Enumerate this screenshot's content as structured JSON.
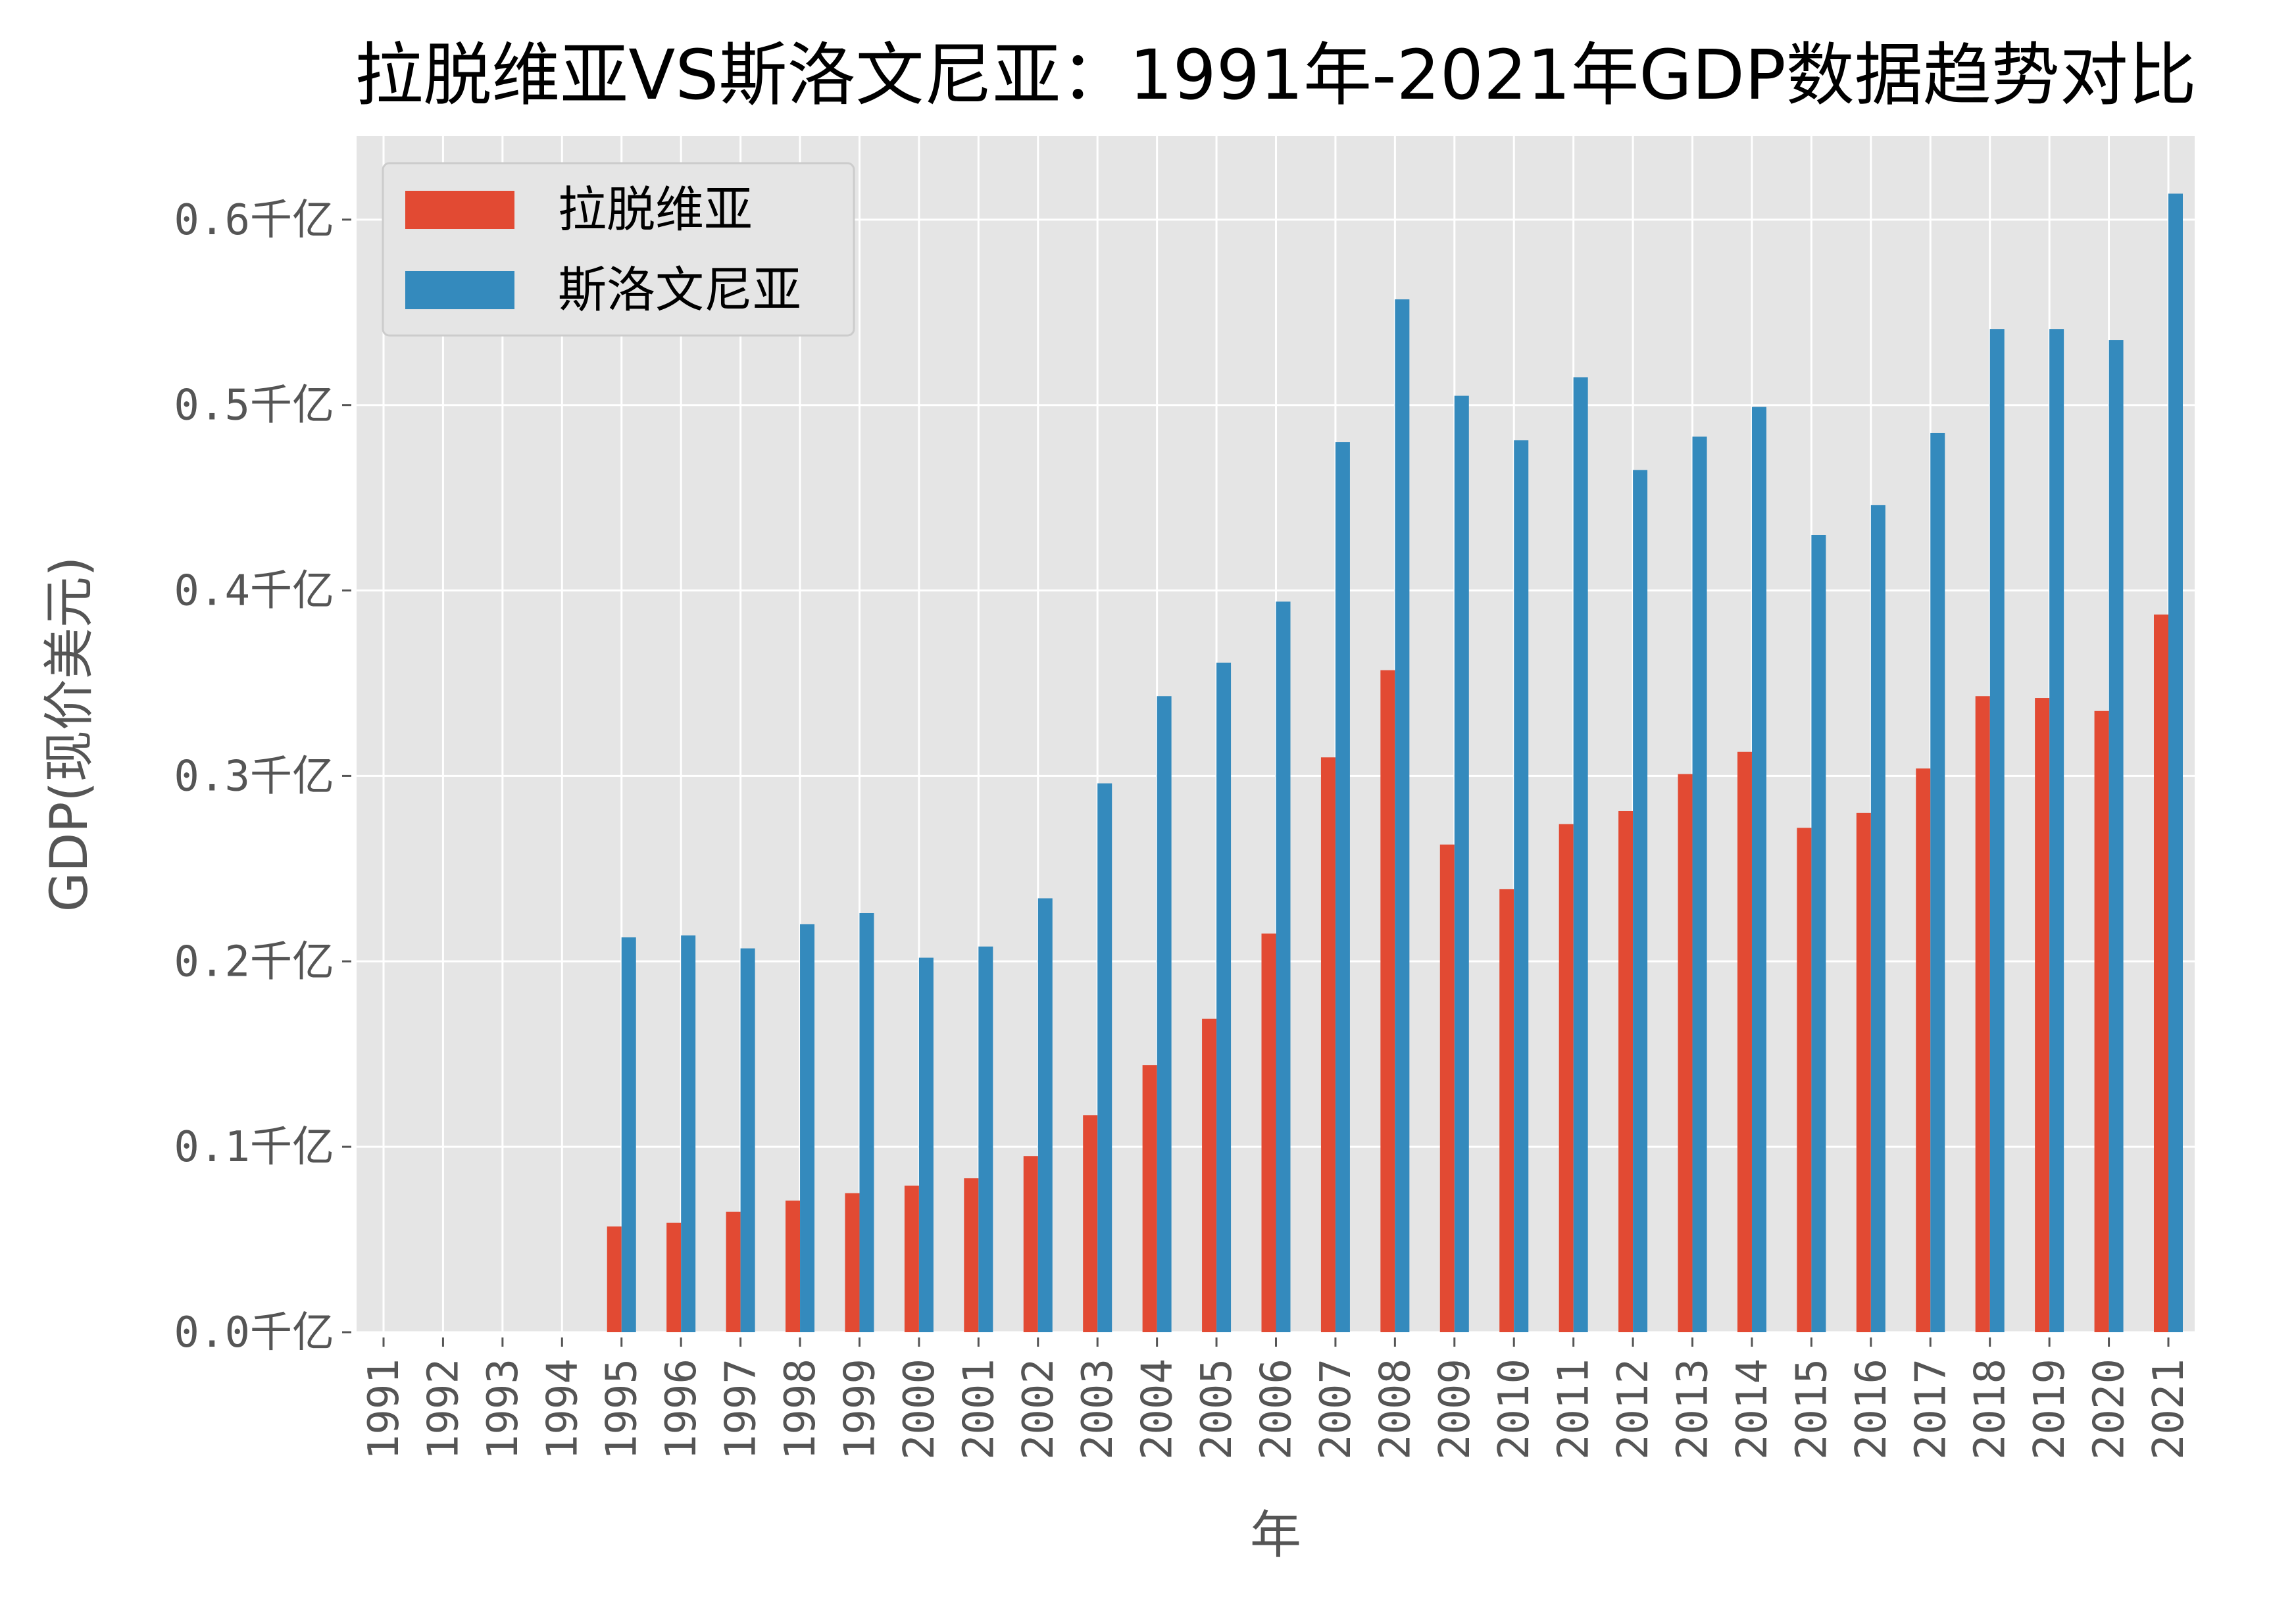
{
  "chart_data": {
    "type": "bar",
    "title": "拉脱维亚VS斯洛文尼亚：1991年-2021年GDP数据趋势对比",
    "xlabel": "年",
    "ylabel": "GDP(现价美元)",
    "categories": [
      "1991",
      "1992",
      "1993",
      "1994",
      "1995",
      "1996",
      "1997",
      "1998",
      "1999",
      "2000",
      "2001",
      "2002",
      "2003",
      "2004",
      "2005",
      "2006",
      "2007",
      "2008",
      "2009",
      "2010",
      "2011",
      "2012",
      "2013",
      "2014",
      "2015",
      "2016",
      "2017",
      "2018",
      "2019",
      "2020",
      "2021"
    ],
    "y_ticks": [
      {
        "value": 0.0,
        "label": "0.0千亿"
      },
      {
        "value": 0.1,
        "label": "0.1千亿"
      },
      {
        "value": 0.2,
        "label": "0.2千亿"
      },
      {
        "value": 0.3,
        "label": "0.3千亿"
      },
      {
        "value": 0.4,
        "label": "0.4千亿"
      },
      {
        "value": 0.5,
        "label": "0.5千亿"
      },
      {
        "value": 0.6,
        "label": "0.6千亿"
      }
    ],
    "ylim": [
      0,
      0.645
    ],
    "grid": true,
    "legend_position": "top-left",
    "series": [
      {
        "name": "拉脱维亚",
        "color": "#e24a33",
        "values": [
          null,
          null,
          null,
          null,
          0.057,
          0.059,
          0.065,
          0.071,
          0.075,
          0.079,
          0.083,
          0.095,
          0.117,
          0.144,
          0.169,
          0.215,
          0.31,
          0.357,
          0.263,
          0.239,
          0.274,
          0.281,
          0.301,
          0.313,
          0.272,
          0.28,
          0.304,
          0.343,
          0.342,
          0.335,
          0.387
        ]
      },
      {
        "name": "斯洛文尼亚",
        "color": "#348abd",
        "values": [
          null,
          null,
          null,
          null,
          0.213,
          0.214,
          0.207,
          0.22,
          0.226,
          0.202,
          0.208,
          0.234,
          0.296,
          0.343,
          0.361,
          0.394,
          0.48,
          0.557,
          0.505,
          0.481,
          0.515,
          0.465,
          0.483,
          0.499,
          0.43,
          0.446,
          0.485,
          0.541,
          0.541,
          0.535,
          0.614
        ]
      }
    ]
  }
}
